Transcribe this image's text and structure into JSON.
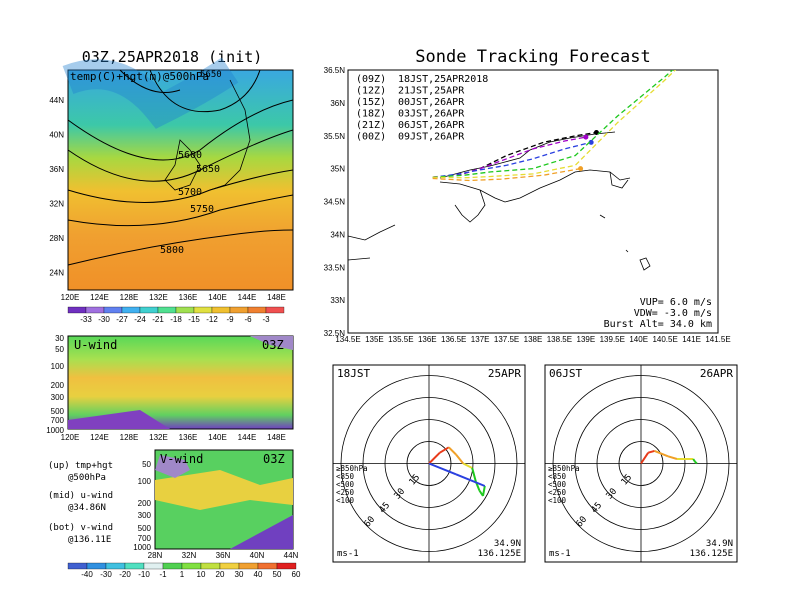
{
  "left": {
    "title": "03Z,25APR2018 (init)",
    "map_label": "temp(C)+hgt(m)@500hPa",
    "lon_ticks": [
      "120E",
      "124E",
      "128E",
      "132E",
      "136E",
      "140E",
      "144E",
      "148E"
    ],
    "lat_ticks": [
      "44N",
      "40N",
      "36N",
      "32N",
      "28N",
      "24N"
    ],
    "contours": [
      "5600",
      "5650",
      "5700",
      "5750",
      "5800",
      "5650"
    ],
    "temp_scale": [
      "-33",
      "-30",
      "-27",
      "-24",
      "-21",
      "-18",
      "-15",
      "-12",
      "-9",
      "-6",
      "-3"
    ],
    "u_wind": {
      "label": "U-wind",
      "time": "03Z",
      "p_ticks": [
        "30",
        "50",
        "100",
        "200",
        "300",
        "500",
        "700",
        "1000"
      ],
      "x_ticks": [
        "120E",
        "124E",
        "128E",
        "132E",
        "136E",
        "140E",
        "144E",
        "148E"
      ]
    },
    "v_wind": {
      "label": "V-wind",
      "time": "03Z",
      "p_ticks": [
        "50",
        "100",
        "200",
        "300",
        "500",
        "700",
        "1000"
      ],
      "x_ticks": [
        "28N",
        "32N",
        "36N",
        "40N",
        "44N"
      ]
    },
    "legend_lines": [
      "(up) tmp+hgt",
      "@500hPa",
      "(mid) u-wind",
      "@34.86N",
      "(bot) v-wind",
      "@136.11E"
    ],
    "wind_scale": [
      "-40",
      "-30",
      "-20",
      "-10",
      "-1",
      "1",
      "10",
      "20",
      "30",
      "40",
      "50",
      "60"
    ]
  },
  "right": {
    "title": "Sonde Tracking Forecast",
    "lat_ticks": [
      "36.5N",
      "36N",
      "35.5N",
      "35N",
      "34.5N",
      "34N",
      "33.5N",
      "33N",
      "32.5N"
    ],
    "lon_ticks": [
      "134.5E",
      "135E",
      "135.5E",
      "136E",
      "136.5E",
      "137E",
      "137.5E",
      "138E",
      "138.5E",
      "139E",
      "139.5E",
      "140E",
      "140.5E",
      "141E",
      "141.5E"
    ],
    "runs": [
      {
        "run": "(09Z)",
        "label": "18JST,25APR2018",
        "color": "#000000"
      },
      {
        "run": "(12Z)",
        "label": "21JST,25APR",
        "color": "#a000c8"
      },
      {
        "run": "(15Z)",
        "label": "00JST,26APR",
        "color": "#2a40e0"
      },
      {
        "run": "(18Z)",
        "label": "03JST,26APR",
        "color": "#1fc81f"
      },
      {
        "run": "(21Z)",
        "label": "06JST,26APR",
        "color": "#e6dc32"
      },
      {
        "run": "(00Z)",
        "label": "09JST,26APR",
        "color": "#f0a028"
      }
    ],
    "params": [
      "VUP=  6.0 m/s",
      "VDW= -3.0 m/s",
      "Burst Alt= 34.0 km"
    ]
  },
  "hodographs": [
    {
      "time": "18JST",
      "date": "25APR",
      "rings": [
        "15",
        "30",
        "45",
        "60"
      ],
      "unit": "ms-1",
      "lat": "34.9N",
      "lon": "136.125E",
      "levels": [
        {
          "label": "≥850hPa",
          "color": "#e83a1a"
        },
        {
          "label": "<850",
          "color": "#f0a028"
        },
        {
          "label": "<500",
          "color": "#1fc81f"
        },
        {
          "label": "<250",
          "color": "#2a40e0"
        },
        {
          "label": "<100",
          "color": "#8090ff"
        }
      ]
    },
    {
      "time": "06JST",
      "date": "26APR",
      "rings": [
        "15",
        "30",
        "45",
        "60"
      ],
      "unit": "ms-1",
      "lat": "34.9N",
      "lon": "136.125E",
      "levels": [
        {
          "label": "≥850hPa",
          "color": "#e83a1a"
        },
        {
          "label": "<850",
          "color": "#f0a028"
        },
        {
          "label": "<500",
          "color": "#1fc81f"
        },
        {
          "label": "<250",
          "color": "#2a40e0"
        },
        {
          "label": "<100",
          "color": "#8090ff"
        }
      ]
    }
  ],
  "chart_data": {
    "type": "line",
    "title": "Sonde Tracking Forecast",
    "x_range": [
      134.5,
      141.5
    ],
    "y_range": [
      32.5,
      36.5
    ],
    "series": [
      {
        "name": "18JST,25APR2018",
        "points": [
          [
            136.1,
            34.87
          ],
          [
            136.6,
            34.9
          ],
          [
            137.0,
            35.0
          ],
          [
            137.5,
            35.2
          ],
          [
            138.2,
            35.4
          ],
          [
            138.8,
            35.5
          ],
          [
            139.2,
            35.55
          ]
        ]
      },
      {
        "name": "21JST,25APR",
        "points": [
          [
            136.1,
            34.87
          ],
          [
            136.6,
            34.9
          ],
          [
            137.0,
            35.0
          ],
          [
            137.5,
            35.15
          ],
          [
            138.0,
            35.3
          ],
          [
            138.6,
            35.42
          ],
          [
            139.0,
            35.48
          ]
        ]
      },
      {
        "name": "00JST,26APR",
        "points": [
          [
            136.1,
            34.87
          ],
          [
            136.6,
            34.92
          ],
          [
            137.0,
            34.98
          ],
          [
            137.5,
            35.05
          ],
          [
            138.0,
            35.15
          ],
          [
            138.6,
            35.3
          ],
          [
            139.1,
            35.4
          ]
        ]
      },
      {
        "name": "03JST,26APR",
        "points": [
          [
            136.1,
            34.87
          ],
          [
            136.7,
            34.9
          ],
          [
            137.2,
            34.95
          ],
          [
            138.0,
            35.0
          ],
          [
            138.8,
            35.2
          ],
          [
            139.6,
            35.8
          ],
          [
            140.5,
            36.4
          ],
          [
            141.2,
            36.9
          ]
        ]
      },
      {
        "name": "06JST,26APR",
        "points": [
          [
            136.1,
            34.87
          ],
          [
            136.7,
            34.86
          ],
          [
            137.2,
            34.88
          ],
          [
            138.0,
            34.92
          ],
          [
            138.8,
            35.05
          ],
          [
            139.6,
            35.7
          ],
          [
            140.5,
            36.35
          ],
          [
            141.2,
            36.9
          ]
        ]
      },
      {
        "name": "09JST,26APR",
        "points": [
          [
            136.1,
            34.85
          ],
          [
            136.8,
            34.82
          ],
          [
            137.4,
            34.84
          ],
          [
            138.2,
            34.9
          ],
          [
            138.9,
            35.0
          ]
        ]
      }
    ]
  }
}
